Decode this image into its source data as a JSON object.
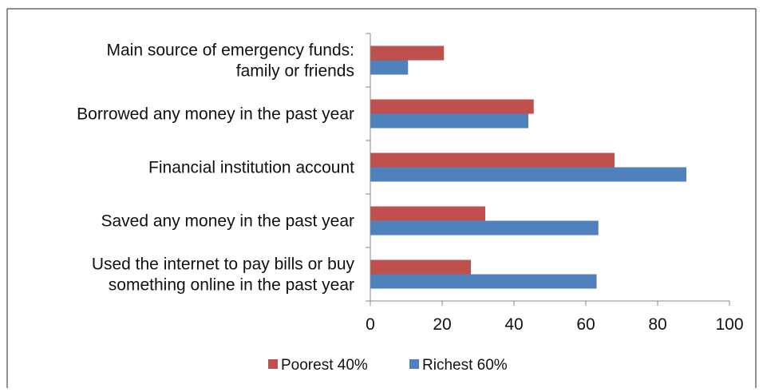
{
  "chart_data": {
    "type": "bar",
    "orientation": "horizontal",
    "categories": [
      [
        "Main source of emergency funds:",
        "family or friends"
      ],
      [
        "Borrowed any money in the past year"
      ],
      [
        "Financial institution account"
      ],
      [
        "Saved any money in the past year"
      ],
      [
        "Used the internet to pay bills or buy",
        "something online in the past year"
      ]
    ],
    "series": [
      {
        "name": "Poorest 40%",
        "color": "#c0504d",
        "values": [
          20.5,
          45.5,
          68,
          32,
          28
        ]
      },
      {
        "name": "Richest 60%",
        "color": "#4f81bd",
        "values": [
          10.5,
          44,
          88,
          63.5,
          63
        ]
      }
    ],
    "xlim": [
      0,
      100
    ],
    "xticks": [
      "0",
      "20",
      "40",
      "60",
      "80",
      "100"
    ],
    "grid": false,
    "legend_position": "bottom"
  }
}
